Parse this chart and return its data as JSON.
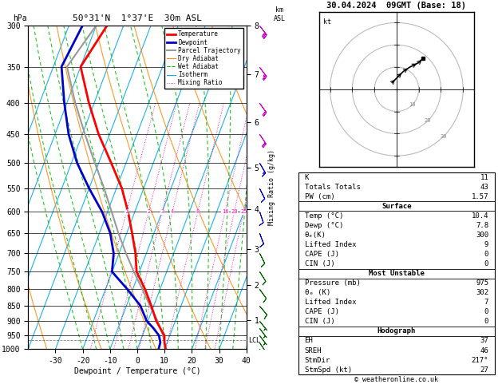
{
  "title_left": "50°31'N  1°37'E  30m ASL",
  "title_right": "30.04.2024  09GMT (Base: 18)",
  "xlabel": "Dewpoint / Temperature (°C)",
  "pressure_ticks": [
    300,
    350,
    400,
    450,
    500,
    550,
    600,
    650,
    700,
    750,
    800,
    850,
    900,
    950,
    1000
  ],
  "temp_ticks": [
    -30,
    -20,
    -10,
    0,
    10,
    20,
    30,
    40
  ],
  "T_min": -40,
  "T_max": 40,
  "P_min": 300,
  "P_max": 1000,
  "skew": 45.0,
  "km_ticks": [
    1,
    2,
    3,
    4,
    5,
    6,
    7,
    8
  ],
  "km_pressures": [
    895,
    785,
    685,
    590,
    505,
    425,
    355,
    295
  ],
  "lcl_pressure": 968,
  "mixing_ratio_lines": [
    1,
    2,
    3,
    4,
    8,
    16,
    20,
    25
  ],
  "temp_profile": {
    "pressure": [
      1000,
      975,
      950,
      925,
      900,
      850,
      800,
      750,
      700,
      650,
      600,
      550,
      500,
      450,
      400,
      350,
      300
    ],
    "temp": [
      10.4,
      9.0,
      8.0,
      5.5,
      3.0,
      -1.0,
      -5.5,
      -11.0,
      -14.0,
      -18.0,
      -22.5,
      -28.0,
      -35.5,
      -44.0,
      -52.0,
      -60.0,
      -56.0
    ]
  },
  "dewpoint_profile": {
    "pressure": [
      1000,
      975,
      950,
      925,
      900,
      850,
      800,
      750,
      700,
      650,
      600,
      550,
      500,
      450,
      400,
      350,
      300
    ],
    "temp": [
      7.8,
      7.5,
      6.0,
      3.0,
      -0.5,
      -5.0,
      -12.0,
      -20.0,
      -22.0,
      -26.0,
      -32.0,
      -40.0,
      -48.0,
      -55.0,
      -61.0,
      -67.0,
      -65.0
    ]
  },
  "parcel_profile": {
    "pressure": [
      975,
      950,
      925,
      900,
      850,
      800,
      750,
      700,
      650,
      600,
      550,
      500,
      450,
      400,
      350,
      300
    ],
    "temp": [
      9.0,
      7.5,
      5.5,
      3.5,
      -1.5,
      -6.5,
      -12.0,
      -17.5,
      -23.0,
      -28.5,
      -34.5,
      -41.5,
      -49.0,
      -57.0,
      -65.0,
      -60.0
    ]
  },
  "colors": {
    "temperature": "#ff0000",
    "dewpoint": "#0000cc",
    "parcel": "#999999",
    "dry_adiabat": "#ff8800",
    "wet_adiabat": "#00bb00",
    "isotherm": "#00aaee",
    "mixing_ratio": "#ff00bb",
    "background": "#ffffff",
    "grid": "#000000"
  },
  "wind_barbs": {
    "pressures": [
      1000,
      975,
      950,
      925,
      900,
      850,
      800,
      750,
      700,
      650,
      600,
      550,
      500,
      450,
      400,
      350,
      300
    ],
    "u": [
      -2,
      -2,
      -3,
      -3,
      -4,
      -5,
      -5,
      -5,
      -4,
      -3,
      -3,
      -5,
      -7,
      -10,
      -13,
      -15,
      -17
    ],
    "v": [
      3,
      3,
      4,
      4,
      5,
      6,
      7,
      8,
      8,
      8,
      9,
      10,
      12,
      15,
      18,
      20,
      22
    ]
  },
  "hodograph_u": [
    -2,
    0,
    3,
    6,
    10,
    12
  ],
  "hodograph_v": [
    3,
    5,
    8,
    10,
    12,
    14
  ],
  "info_table": {
    "K": 11,
    "Totals_Totals": 43,
    "PW_cm": 1.57,
    "Surface_Temp": 10.4,
    "Surface_Dewp": 7.8,
    "Surface_theta_e": 300,
    "Surface_LI": 9,
    "Surface_CAPE": 0,
    "Surface_CIN": 0,
    "MU_Pressure": 975,
    "MU_theta_e": 302,
    "MU_LI": 7,
    "MU_CAPE": 0,
    "MU_CIN": 0,
    "EH": 37,
    "SREH": 46,
    "StmDir": 217,
    "StmSpd": 27
  }
}
